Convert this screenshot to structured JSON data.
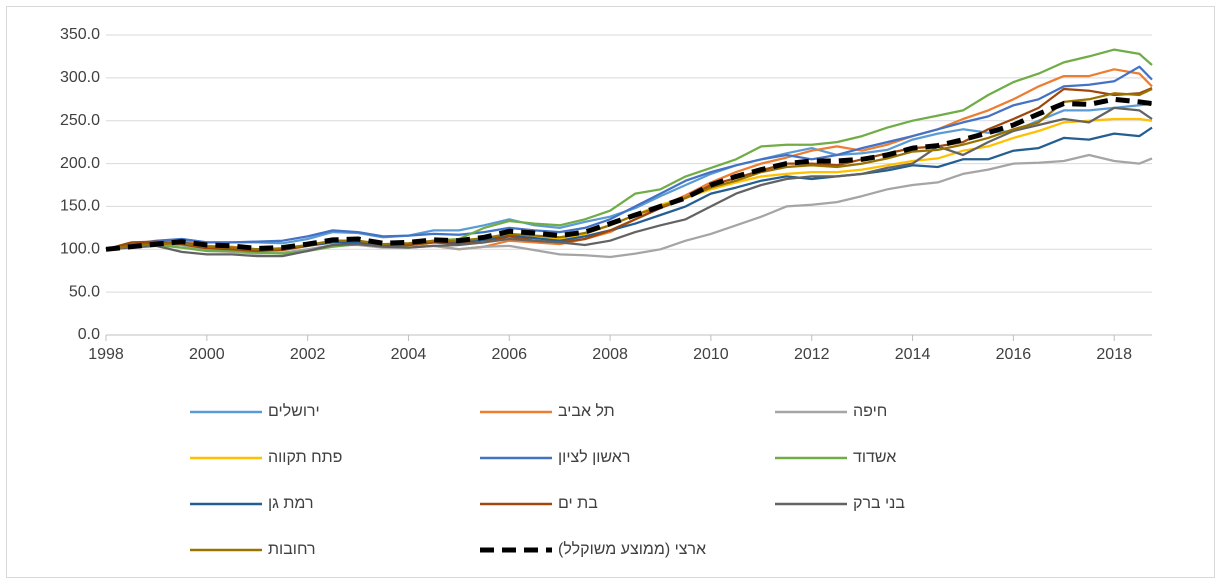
{
  "chart_data": {
    "type": "line",
    "x": [
      1998,
      1998.5,
      1999,
      1999.5,
      2000,
      2000.5,
      2001,
      2001.5,
      2002,
      2002.5,
      2003,
      2003.5,
      2004,
      2004.5,
      2005,
      2005.5,
      2006,
      2006.5,
      2007,
      2007.5,
      2008,
      2008.5,
      2009,
      2009.5,
      2010,
      2010.5,
      2011,
      2011.5,
      2012,
      2012.5,
      2013,
      2013.5,
      2014,
      2014.5,
      2015,
      2015.5,
      2016,
      2016.5,
      2017,
      2017.5,
      2018,
      2018.5,
      2018.75
    ],
    "xlim": [
      1998,
      2018.75
    ],
    "xticks": [
      1998,
      2000,
      2002,
      2004,
      2006,
      2008,
      2010,
      2012,
      2014,
      2016,
      2018
    ],
    "ylim": [
      0,
      350
    ],
    "yticks": [
      {
        "value": 0,
        "label": "0.0"
      },
      {
        "value": 50,
        "label": "50.0"
      },
      {
        "value": 100,
        "label": "100.0"
      },
      {
        "value": 150,
        "label": "150.0"
      },
      {
        "value": 200,
        "label": "200.0"
      },
      {
        "value": 250,
        "label": "250.0"
      },
      {
        "value": 300,
        "label": "300.0"
      },
      {
        "value": 350,
        "label": "350.0"
      }
    ],
    "grid": true,
    "legend": "bottom",
    "series": [
      {
        "name": "ירושלים",
        "color": "#5b9bd5",
        "values": [
          100,
          104,
          108,
          112,
          108,
          108,
          108,
          107,
          112,
          120,
          119,
          114,
          116,
          122,
          122,
          128,
          135,
          128,
          125,
          132,
          138,
          148,
          162,
          175,
          188,
          198,
          205,
          212,
          218,
          210,
          212,
          216,
          228,
          235,
          240,
          236,
          238,
          250,
          262,
          262,
          265,
          268,
          270
        ]
      },
      {
        "name": "תל אביב",
        "color": "#ed7d31",
        "values": [
          100,
          105,
          109,
          110,
          104,
          103,
          99,
          100,
          104,
          109,
          110,
          104,
          104,
          104,
          100,
          103,
          110,
          108,
          106,
          112,
          120,
          135,
          150,
          163,
          178,
          190,
          200,
          207,
          215,
          220,
          215,
          222,
          232,
          240,
          252,
          262,
          275,
          290,
          302,
          302,
          310,
          305,
          290
        ]
      },
      {
        "name": "חיפה",
        "color": "#a5a5a5",
        "values": [
          100,
          103,
          105,
          105,
          98,
          97,
          95,
          96,
          100,
          105,
          105,
          102,
          102,
          104,
          100,
          103,
          104,
          99,
          94,
          93,
          91,
          95,
          100,
          110,
          118,
          128,
          138,
          150,
          152,
          155,
          162,
          170,
          175,
          178,
          188,
          193,
          200,
          201,
          203,
          210,
          203,
          200,
          206
        ]
      },
      {
        "name": "פתח תקווה",
        "color": "#ffc000",
        "values": [
          100,
          104,
          107,
          108,
          102,
          101,
          99,
          100,
          104,
          108,
          108,
          103,
          104,
          108,
          107,
          110,
          115,
          113,
          112,
          118,
          128,
          140,
          152,
          160,
          170,
          178,
          185,
          188,
          190,
          190,
          193,
          198,
          203,
          206,
          215,
          220,
          230,
          238,
          248,
          250,
          252,
          252,
          250
        ]
      },
      {
        "name": "ראשון לציון",
        "color": "#4472c4",
        "values": [
          100,
          106,
          110,
          112,
          108,
          108,
          109,
          110,
          115,
          122,
          120,
          115,
          116,
          118,
          117,
          120,
          125,
          122,
          120,
          125,
          135,
          150,
          165,
          180,
          190,
          198,
          205,
          210,
          205,
          210,
          218,
          225,
          232,
          240,
          248,
          255,
          268,
          275,
          290,
          292,
          296,
          313,
          298
        ]
      },
      {
        "name": "אשדוד",
        "color": "#70ad47",
        "values": [
          100,
          104,
          105,
          102,
          98,
          98,
          96,
          95,
          98,
          103,
          106,
          104,
          106,
          110,
          112,
          125,
          133,
          130,
          128,
          135,
          145,
          165,
          170,
          185,
          195,
          205,
          220,
          222,
          222,
          225,
          232,
          242,
          250,
          256,
          262,
          280,
          295,
          305,
          318,
          325,
          333,
          328,
          315
        ]
      },
      {
        "name": "רמת גן",
        "color": "#255e91",
        "values": [
          100,
          104,
          107,
          108,
          103,
          102,
          100,
          101,
          104,
          108,
          108,
          104,
          105,
          108,
          108,
          111,
          116,
          113,
          110,
          115,
          122,
          130,
          140,
          150,
          165,
          172,
          180,
          185,
          182,
          185,
          188,
          192,
          198,
          196,
          205,
          205,
          215,
          218,
          230,
          228,
          235,
          232,
          242
        ]
      },
      {
        "name": "בת ים",
        "color": "#9e480e",
        "values": [
          100,
          108,
          109,
          106,
          101,
          100,
          98,
          99,
          104,
          110,
          110,
          105,
          105,
          108,
          106,
          108,
          115,
          110,
          108,
          112,
          122,
          135,
          148,
          160,
          175,
          183,
          192,
          200,
          200,
          198,
          205,
          212,
          218,
          220,
          225,
          240,
          252,
          265,
          287,
          285,
          280,
          282,
          288
        ]
      },
      {
        "name": "בני ברק",
        "color": "#636363",
        "values": [
          100,
          102,
          104,
          97,
          94,
          94,
          92,
          92,
          98,
          105,
          106,
          103,
          102,
          104,
          105,
          108,
          112,
          110,
          108,
          105,
          110,
          120,
          128,
          135,
          150,
          165,
          175,
          182,
          185,
          185,
          188,
          195,
          200,
          220,
          210,
          225,
          238,
          245,
          252,
          248,
          265,
          262,
          252
        ]
      },
      {
        "name": "רחובות",
        "color": "#997300",
        "values": [
          100,
          104,
          106,
          107,
          103,
          102,
          100,
          101,
          105,
          110,
          110,
          106,
          107,
          110,
          110,
          113,
          118,
          116,
          114,
          119,
          128,
          140,
          150,
          160,
          172,
          180,
          190,
          196,
          198,
          196,
          200,
          206,
          214,
          216,
          222,
          230,
          240,
          248,
          272,
          275,
          282,
          280,
          287
        ]
      },
      {
        "name": "ארצי (ממוצע משוקלל)",
        "color": "#000000",
        "dashed": true,
        "values": [
          100,
          103,
          106,
          109,
          105,
          104,
          101,
          102,
          106,
          111,
          112,
          107,
          108,
          111,
          110,
          114,
          121,
          119,
          116,
          120,
          130,
          140,
          150,
          160,
          175,
          185,
          193,
          200,
          203,
          203,
          205,
          210,
          218,
          221,
          228,
          236,
          245,
          258,
          270,
          269,
          275,
          272,
          270
        ]
      }
    ]
  }
}
